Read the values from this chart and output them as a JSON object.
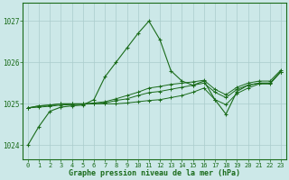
{
  "title": "Graphe pression niveau de la mer (hPa)",
  "bg_color": "#cce8e8",
  "grid_color": "#aacccc",
  "line_color": "#1a6b1a",
  "xlim": [
    -0.5,
    23.5
  ],
  "ylim": [
    1023.65,
    1027.45
  ],
  "x_ticks": [
    0,
    1,
    2,
    3,
    4,
    5,
    6,
    7,
    8,
    9,
    10,
    11,
    12,
    13,
    14,
    15,
    16,
    17,
    18,
    19,
    20,
    21,
    22,
    23
  ],
  "y_ticks": [
    1024,
    1025,
    1026,
    1027
  ],
  "hours": [
    0,
    1,
    2,
    3,
    4,
    5,
    6,
    7,
    8,
    9,
    10,
    11,
    12,
    13,
    14,
    15,
    16,
    17,
    18,
    19,
    20,
    21,
    22,
    23
  ],
  "spike_line": [
    1024.0,
    1024.45,
    1024.82,
    1024.92,
    1024.95,
    1024.97,
    1025.1,
    1025.65,
    1026.0,
    1026.35,
    1026.7,
    1027.0,
    1026.55,
    1025.8,
    1025.55,
    1025.45,
    1025.55,
    1025.1,
    1024.75,
    1025.3,
    1025.45,
    1025.5,
    1025.5,
    1025.78
  ],
  "mid_high_line": [
    1024.9,
    1024.95,
    1024.97,
    1025.0,
    1025.0,
    1025.0,
    1025.02,
    1025.05,
    1025.12,
    1025.2,
    1025.28,
    1025.38,
    1025.42,
    1025.47,
    1025.5,
    1025.53,
    1025.57,
    1025.35,
    1025.22,
    1025.4,
    1025.5,
    1025.55,
    1025.55,
    1025.82
  ],
  "mid_line": [
    1024.9,
    1024.95,
    1024.97,
    1025.0,
    1025.0,
    1025.0,
    1025.0,
    1025.02,
    1025.08,
    1025.12,
    1025.2,
    1025.27,
    1025.3,
    1025.35,
    1025.4,
    1025.45,
    1025.5,
    1025.28,
    1025.15,
    1025.35,
    1025.45,
    1025.5,
    1025.5,
    1025.78
  ],
  "flat_line": [
    1024.9,
    1024.92,
    1024.94,
    1024.97,
    1024.98,
    1024.99,
    1025.0,
    1025.0,
    1025.0,
    1025.02,
    1025.05,
    1025.08,
    1025.1,
    1025.15,
    1025.2,
    1025.28,
    1025.38,
    1025.1,
    1024.98,
    1025.25,
    1025.38,
    1025.48,
    1025.48,
    1025.78
  ]
}
